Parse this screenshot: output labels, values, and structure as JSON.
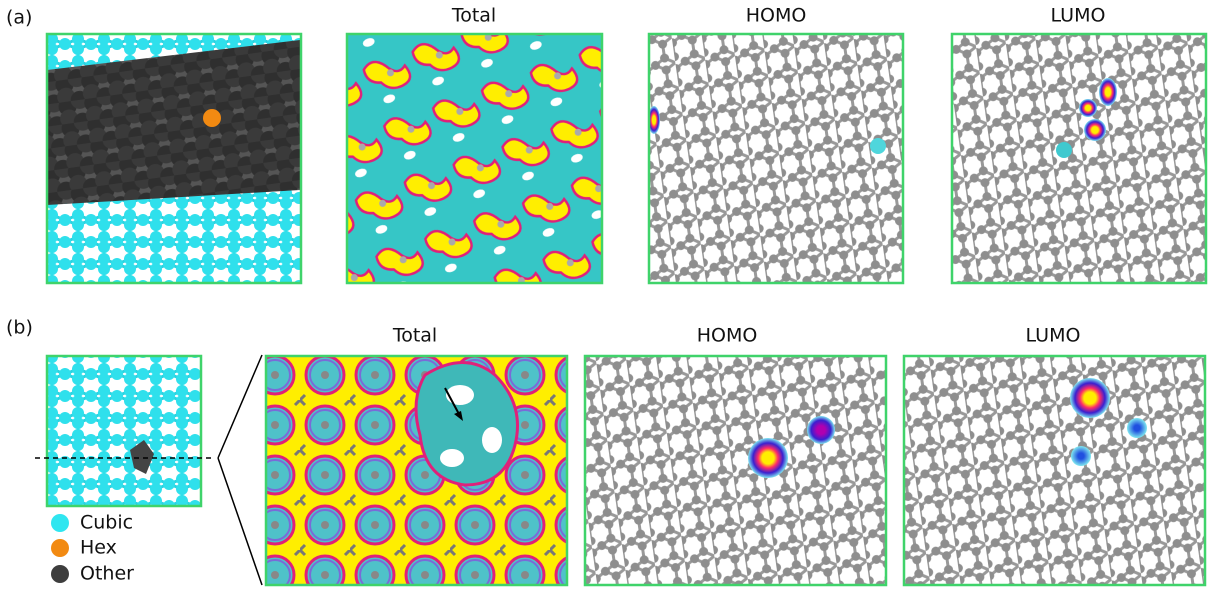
{
  "panel_a": {
    "label": "(a)",
    "titles": [
      "Total",
      "HOMO",
      "LUMO"
    ]
  },
  "panel_b": {
    "label": "(b)",
    "titles": [
      "Total",
      "HOMO",
      "LUMO"
    ],
    "legend": [
      "Cubic",
      "Hex",
      "Other"
    ]
  }
}
